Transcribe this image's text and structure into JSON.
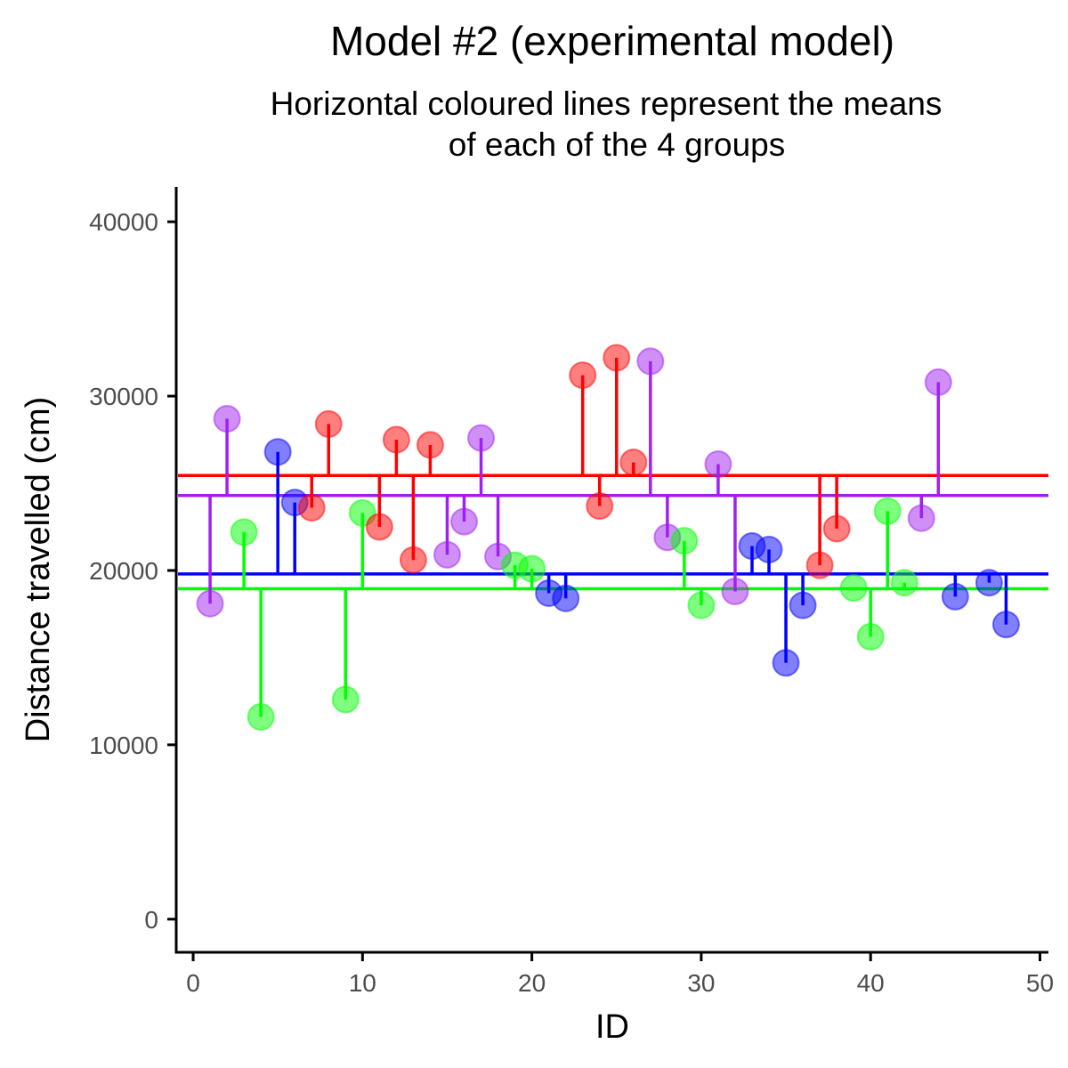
{
  "chart_data": {
    "type": "scatter",
    "title": "Model #2 (experimental model)",
    "subtitle_lines": [
      "Horizontal coloured lines represent the means",
      "of each of the 4 groups"
    ],
    "xlabel": "ID",
    "ylabel": "Distance travelled (cm)",
    "xlim": [
      -1,
      50.5
    ],
    "ylim": [
      -1900,
      42000
    ],
    "x_ticks": [
      0,
      10,
      20,
      30,
      40,
      50
    ],
    "y_ticks": [
      0,
      10000,
      20000,
      30000,
      40000
    ],
    "grid": false,
    "legend": "none",
    "colors": {
      "red": "#ff0000",
      "purple": "#a020f0",
      "blue": "#0000ff",
      "green": "#00ff00"
    },
    "means": [
      {
        "group": "red",
        "value": 25450
      },
      {
        "group": "purple",
        "value": 24300
      },
      {
        "group": "blue",
        "value": 19800
      },
      {
        "group": "green",
        "value": 18950
      }
    ],
    "points": [
      {
        "x": 1,
        "y": 18100,
        "group": "purple"
      },
      {
        "x": 2,
        "y": 28700,
        "group": "purple"
      },
      {
        "x": 3,
        "y": 22200,
        "group": "green"
      },
      {
        "x": 4,
        "y": 11600,
        "group": "green"
      },
      {
        "x": 5,
        "y": 26800,
        "group": "blue"
      },
      {
        "x": 6,
        "y": 23900,
        "group": "blue"
      },
      {
        "x": 7,
        "y": 23600,
        "group": "red"
      },
      {
        "x": 8,
        "y": 28400,
        "group": "red"
      },
      {
        "x": 9,
        "y": 12600,
        "group": "green"
      },
      {
        "x": 10,
        "y": 23300,
        "group": "green"
      },
      {
        "x": 11,
        "y": 22500,
        "group": "red"
      },
      {
        "x": 12,
        "y": 27500,
        "group": "red"
      },
      {
        "x": 13,
        "y": 20600,
        "group": "red"
      },
      {
        "x": 14,
        "y": 27200,
        "group": "red"
      },
      {
        "x": 15,
        "y": 20900,
        "group": "purple"
      },
      {
        "x": 16,
        "y": 22800,
        "group": "purple"
      },
      {
        "x": 17,
        "y": 27600,
        "group": "purple"
      },
      {
        "x": 18,
        "y": 20800,
        "group": "purple"
      },
      {
        "x": 19,
        "y": 20300,
        "group": "green"
      },
      {
        "x": 20,
        "y": 20100,
        "group": "green"
      },
      {
        "x": 21,
        "y": 18700,
        "group": "blue"
      },
      {
        "x": 22,
        "y": 18400,
        "group": "blue"
      },
      {
        "x": 23,
        "y": 31200,
        "group": "red"
      },
      {
        "x": 24,
        "y": 23700,
        "group": "red"
      },
      {
        "x": 25,
        "y": 32200,
        "group": "red"
      },
      {
        "x": 26,
        "y": 26200,
        "group": "red"
      },
      {
        "x": 27,
        "y": 32000,
        "group": "purple"
      },
      {
        "x": 28,
        "y": 21900,
        "group": "purple"
      },
      {
        "x": 29,
        "y": 21700,
        "group": "green"
      },
      {
        "x": 30,
        "y": 18000,
        "group": "green"
      },
      {
        "x": 31,
        "y": 26100,
        "group": "purple"
      },
      {
        "x": 32,
        "y": 18800,
        "group": "purple"
      },
      {
        "x": 33,
        "y": 21400,
        "group": "blue"
      },
      {
        "x": 34,
        "y": 21200,
        "group": "blue"
      },
      {
        "x": 35,
        "y": 14700,
        "group": "blue"
      },
      {
        "x": 36,
        "y": 18000,
        "group": "blue"
      },
      {
        "x": 37,
        "y": 20300,
        "group": "red"
      },
      {
        "x": 38,
        "y": 22400,
        "group": "red"
      },
      {
        "x": 39,
        "y": 19000,
        "group": "green"
      },
      {
        "x": 40,
        "y": 16200,
        "group": "green"
      },
      {
        "x": 41,
        "y": 23400,
        "group": "green"
      },
      {
        "x": 42,
        "y": 19300,
        "group": "green"
      },
      {
        "x": 43,
        "y": 23000,
        "group": "purple"
      },
      {
        "x": 44,
        "y": 30800,
        "group": "purple"
      },
      {
        "x": 45,
        "y": 18500,
        "group": "blue"
      },
      {
        "x": 47,
        "y": 19300,
        "group": "blue"
      },
      {
        "x": 48,
        "y": 16900,
        "group": "blue"
      }
    ]
  }
}
